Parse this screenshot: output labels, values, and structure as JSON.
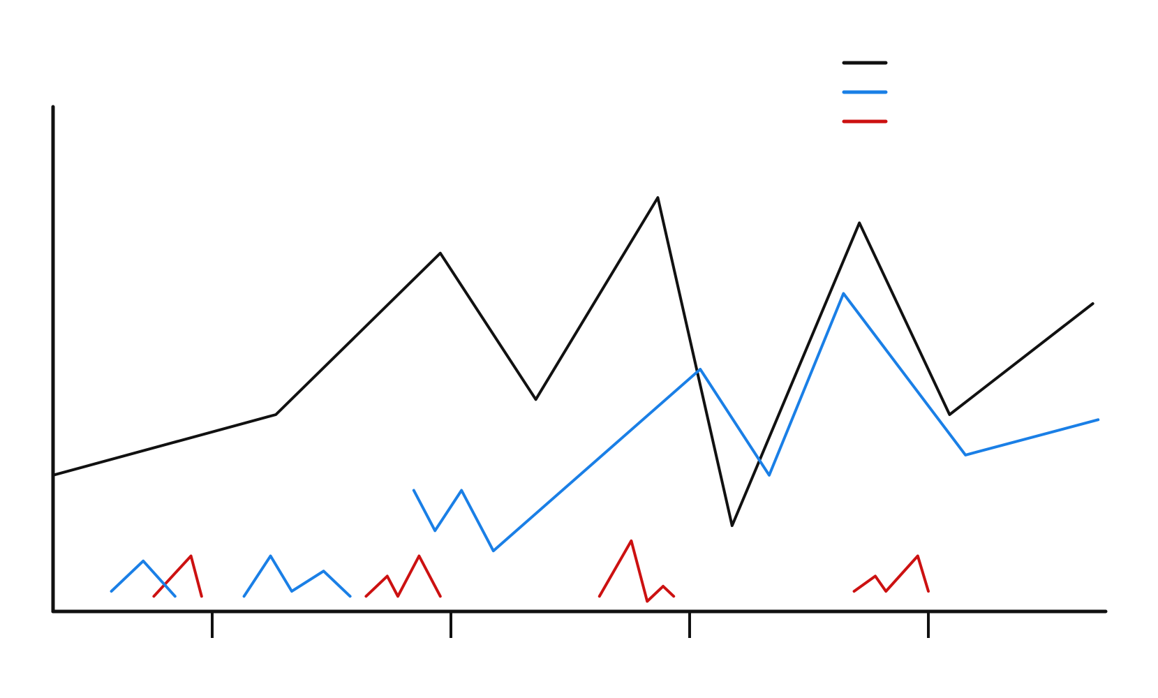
{
  "colors": {
    "axis": "#111111",
    "series_black": "#111111",
    "series_blue": "#1a7fe6",
    "series_red": "#cc1111"
  },
  "chart_data": {
    "type": "line",
    "title": "",
    "xlabel": "",
    "ylabel": "",
    "grid": false,
    "legend_position": "top-right",
    "x_ticks": [
      3,
      7.5,
      12,
      16.5
    ],
    "x_tick_labels": [
      "",
      "",
      "",
      ""
    ],
    "xlim": [
      0,
      20
    ],
    "ylim": [
      0,
      100
    ],
    "series": [
      {
        "name": "",
        "color": "#111111",
        "x": [
          0,
          4.2,
          7.3,
          9.1,
          11.4,
          12.8,
          15.2,
          16.9,
          19.6
        ],
        "y": [
          27,
          39,
          71,
          42,
          82,
          17,
          77,
          39,
          61
        ]
      },
      {
        "name": "",
        "color": "#1a7fe6",
        "x": [
          6.8,
          7.2,
          7.7,
          8.3,
          12.2,
          13.5,
          14.9,
          17.2,
          19.7
        ],
        "y": [
          24,
          16,
          24,
          12,
          48,
          27,
          63,
          31,
          38
        ]
      },
      {
        "name": "",
        "color": "#cc1111",
        "segments": [
          {
            "x": [
              1.9,
              2.6,
              2.8
            ],
            "y": [
              3,
              11,
              3
            ]
          },
          {
            "x": [
              5.9,
              6.3,
              6.5,
              6.9,
              7.3
            ],
            "y": [
              3,
              7,
              3,
              11,
              3
            ]
          },
          {
            "x": [
              10.3,
              10.9,
              11.2,
              11.5,
              11.7
            ],
            "y": [
              3,
              14,
              2,
              5,
              3
            ]
          },
          {
            "x": [
              15.1,
              15.5,
              15.7,
              16.3,
              16.5
            ],
            "y": [
              4,
              7,
              4,
              11,
              4
            ]
          }
        ]
      },
      {
        "name": "",
        "color": "#1a7fe6",
        "segments": [
          {
            "x": [
              1.1,
              1.7,
              2.3
            ],
            "y": [
              4,
              10,
              3
            ]
          },
          {
            "x": [
              3.6,
              4.1,
              4.5,
              5.1,
              5.6
            ],
            "y": [
              3,
              11,
              4,
              8,
              3
            ]
          }
        ]
      }
    ]
  }
}
